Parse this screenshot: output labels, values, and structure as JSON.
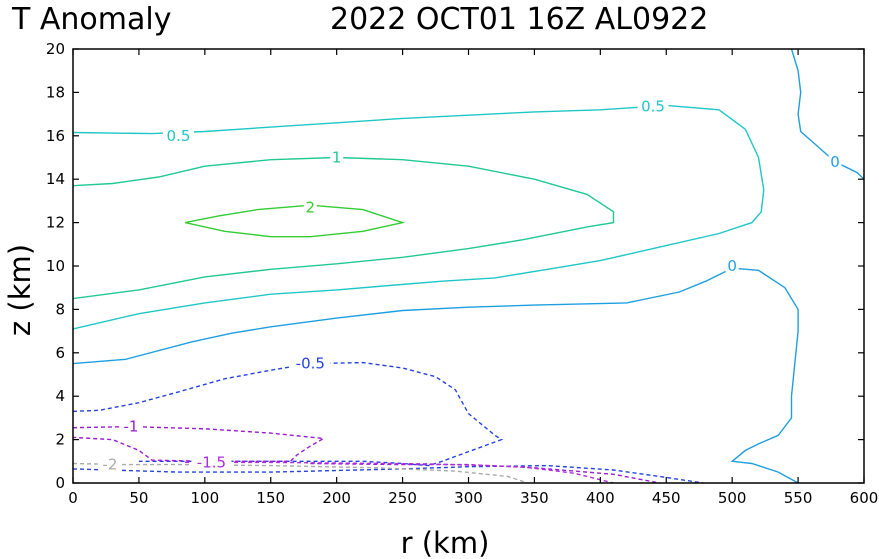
{
  "title": {
    "left": "T Anomaly",
    "right": "2022 OCT01 16Z   AL0922"
  },
  "chart_data": {
    "type": "contour",
    "title": "T Anomaly",
    "xlabel": "r (km)",
    "ylabel": "z (km)",
    "xlim": [
      0,
      600
    ],
    "ylim": [
      0,
      20
    ],
    "xticks": [
      0,
      50,
      100,
      150,
      200,
      250,
      300,
      350,
      400,
      450,
      500,
      550,
      600
    ],
    "yticks": [
      0,
      2,
      4,
      6,
      8,
      10,
      12,
      14,
      16,
      18,
      20
    ],
    "contours": [
      {
        "level": 2,
        "color": "#33cc33",
        "dashed": false,
        "label": "2",
        "label_at": [
          180,
          12.7
        ],
        "points": [
          [
            85,
            12.0
          ],
          [
            110,
            12.3
          ],
          [
            140,
            12.6
          ],
          [
            180,
            12.8
          ],
          [
            220,
            12.6
          ],
          [
            250,
            12.0
          ],
          [
            220,
            11.6
          ],
          [
            180,
            11.35
          ],
          [
            150,
            11.35
          ],
          [
            115,
            11.6
          ],
          [
            85,
            12.0
          ]
        ]
      },
      {
        "level": 1,
        "color": "#22c98f",
        "dashed": false,
        "label": "1",
        "label_at": [
          200,
          15.0
        ],
        "points": [
          [
            0,
            13.7
          ],
          [
            30,
            13.8
          ],
          [
            65,
            14.1
          ],
          [
            100,
            14.6
          ],
          [
            150,
            14.9
          ],
          [
            200,
            15.0
          ],
          [
            250,
            14.9
          ],
          [
            300,
            14.6
          ],
          [
            350,
            14.0
          ],
          [
            390,
            13.3
          ],
          [
            410,
            12.5
          ],
          [
            410,
            12.0
          ],
          [
            390,
            11.8
          ],
          [
            340,
            11.2
          ],
          [
            300,
            10.8
          ],
          [
            250,
            10.4
          ],
          [
            200,
            10.1
          ],
          [
            150,
            9.85
          ],
          [
            100,
            9.5
          ],
          [
            50,
            8.9
          ],
          [
            0,
            8.5
          ]
        ]
      },
      {
        "level": 0.5,
        "color": "#20c6c6",
        "dashed": false,
        "label": "0.5",
        "label_at": [
          80,
          16.0
        ],
        "points": [
          [
            0,
            16.15
          ],
          [
            60,
            16.1
          ],
          [
            100,
            16.2
          ],
          [
            150,
            16.4
          ],
          [
            200,
            16.6
          ],
          [
            250,
            16.8
          ],
          [
            300,
            16.95
          ],
          [
            350,
            17.1
          ],
          [
            400,
            17.2
          ],
          [
            450,
            17.4
          ],
          [
            490,
            17.2
          ],
          [
            510,
            16.3
          ],
          [
            520,
            15.0
          ],
          [
            524,
            13.5
          ],
          [
            522,
            12.5
          ],
          [
            515,
            12.0
          ],
          [
            490,
            11.5
          ],
          [
            440,
            10.8
          ],
          [
            400,
            10.25
          ],
          [
            360,
            9.85
          ],
          [
            320,
            9.45
          ],
          [
            280,
            9.3
          ],
          [
            240,
            9.1
          ],
          [
            200,
            8.9
          ],
          [
            150,
            8.7
          ],
          [
            100,
            8.3
          ],
          [
            50,
            7.8
          ],
          [
            0,
            7.1
          ]
        ],
        "extra_label": {
          "text": "0.5",
          "at": [
            440,
            17.35
          ]
        }
      },
      {
        "level": 0,
        "color": "#1f9fe0",
        "dashed": false,
        "label": "0",
        "label_at": [
          500,
          10.0
        ],
        "points": [
          [
            0,
            5.5
          ],
          [
            40,
            5.7
          ],
          [
            90,
            6.5
          ],
          [
            120,
            6.9
          ],
          [
            150,
            7.2
          ],
          [
            200,
            7.6
          ],
          [
            250,
            7.95
          ],
          [
            300,
            8.1
          ],
          [
            350,
            8.2
          ],
          [
            420,
            8.3
          ],
          [
            460,
            8.8
          ],
          [
            480,
            9.3
          ],
          [
            500,
            9.9
          ],
          [
            520,
            9.8
          ],
          [
            540,
            9.0
          ],
          [
            550,
            8.0
          ],
          [
            550,
            7.0
          ],
          [
            545,
            4.0
          ],
          [
            545,
            3.0
          ],
          [
            535,
            2.2
          ],
          [
            520,
            1.8
          ],
          [
            510,
            1.5
          ],
          [
            500,
            1.0
          ],
          [
            515,
            0.9
          ],
          [
            535,
            0.5
          ],
          [
            550,
            0.0
          ]
        ]
      },
      {
        "level": 0,
        "color": "#1f9fe0",
        "dashed": false,
        "label": "0",
        "label_at": [
          578,
          14.8
        ],
        "points": [
          [
            545,
            20.0
          ],
          [
            550,
            19.0
          ],
          [
            552,
            18.0
          ],
          [
            550,
            17.0
          ],
          [
            552,
            16.2
          ],
          [
            565,
            15.5
          ],
          [
            578,
            14.8
          ],
          [
            595,
            14.3
          ],
          [
            600,
            14.0
          ]
        ]
      },
      {
        "level": -0.5,
        "color": "#2343e0",
        "dashed": true,
        "label": "-0.5",
        "label_at": [
          180,
          5.5
        ],
        "points": [
          [
            0,
            3.3
          ],
          [
            20,
            3.35
          ],
          [
            50,
            3.7
          ],
          [
            80,
            4.2
          ],
          [
            115,
            4.8
          ],
          [
            150,
            5.2
          ],
          [
            180,
            5.5
          ],
          [
            220,
            5.55
          ],
          [
            250,
            5.3
          ],
          [
            275,
            4.9
          ],
          [
            290,
            4.3
          ],
          [
            300,
            3.2
          ],
          [
            320,
            2.2
          ],
          [
            325,
            2.0
          ],
          [
            280,
            1.0
          ],
          [
            270,
            0.8
          ],
          [
            250,
            0.9
          ],
          [
            220,
            1.0
          ],
          [
            180,
            1.0
          ],
          [
            150,
            1.0
          ],
          [
            100,
            1.0
          ],
          [
            50,
            1.0
          ]
        ],
        "extra_points": [
          [
            0,
            0.65
          ],
          [
            80,
            0.5
          ],
          [
            150,
            0.5
          ],
          [
            250,
            0.65
          ],
          [
            300,
            0.75
          ],
          [
            360,
            0.8
          ],
          [
            410,
            0.6
          ],
          [
            445,
            0.3
          ],
          [
            478,
            0.0
          ]
        ]
      },
      {
        "level": -1,
        "color": "#9a1bd6",
        "dashed": true,
        "label": "-1",
        "label_at": [
          44,
          2.6
        ],
        "points": [
          [
            0,
            2.55
          ],
          [
            44,
            2.6
          ],
          [
            100,
            2.5
          ],
          [
            150,
            2.3
          ],
          [
            190,
            2.05
          ],
          [
            180,
            1.7
          ],
          [
            170,
            1.3
          ],
          [
            165,
            1.0
          ],
          [
            140,
            1.0
          ],
          [
            105,
            1.0
          ],
          [
            60,
            1.05
          ],
          [
            50,
            1.5
          ],
          [
            30,
            2.0
          ],
          [
            0,
            2.1
          ]
        ],
        "extra_points": [
          [
            180,
            0.9
          ],
          [
            250,
            0.85
          ],
          [
            300,
            0.85
          ],
          [
            350,
            0.7
          ],
          [
            410,
            0.4
          ],
          [
            445,
            0.0
          ]
        ]
      },
      {
        "level": -1.5,
        "color": "#b12bdf",
        "dashed": true,
        "label": "-1.5",
        "label_at": [
          105,
          0.95
        ],
        "points": [
          [
            85,
            0.95
          ],
          [
            150,
            0.95
          ],
          [
            200,
            0.92
          ],
          [
            270,
            0.88
          ],
          [
            340,
            0.75
          ],
          [
            380,
            0.45
          ],
          [
            410,
            0.0
          ]
        ]
      },
      {
        "level": -2,
        "color": "#aaaaaa",
        "dashed": true,
        "label": "-2",
        "label_at": [
          28,
          0.85
        ],
        "points": [
          [
            0,
            0.9
          ],
          [
            40,
            0.85
          ],
          [
            80,
            0.85
          ],
          [
            150,
            0.8
          ],
          [
            230,
            0.7
          ],
          [
            290,
            0.55
          ],
          [
            330,
            0.3
          ],
          [
            345,
            0.0
          ]
        ]
      }
    ]
  }
}
